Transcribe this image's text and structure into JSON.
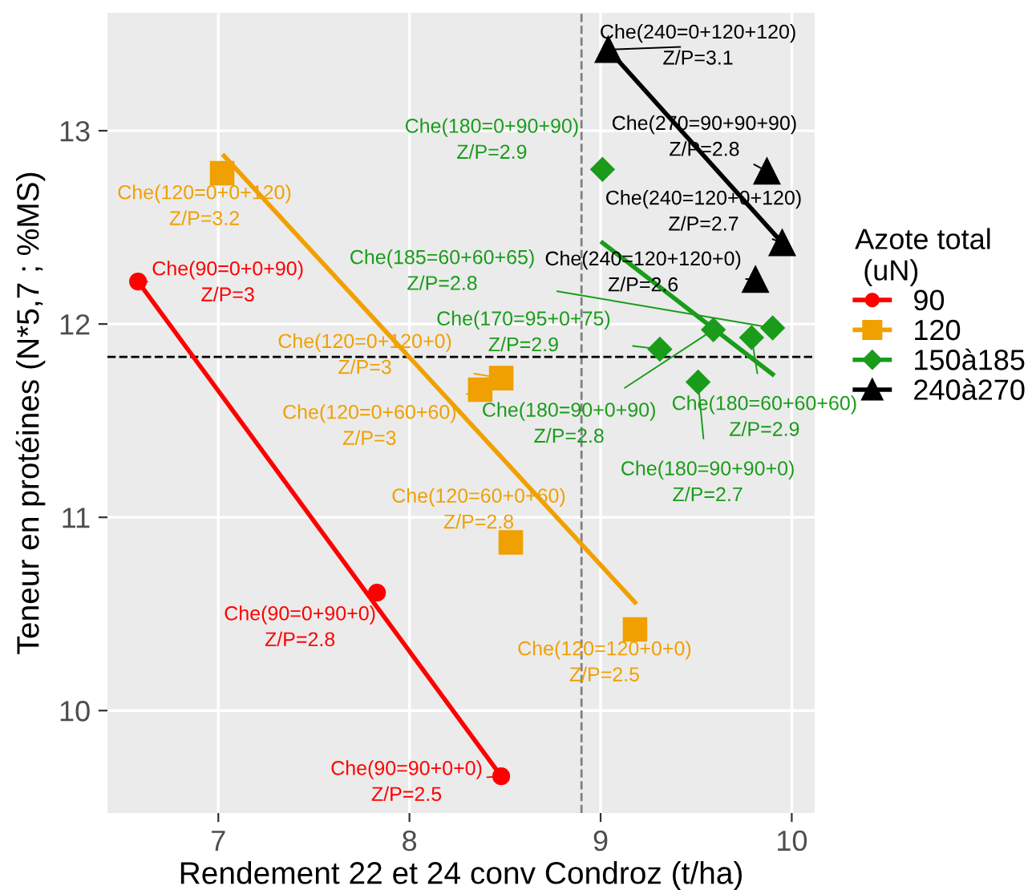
{
  "chart_data": {
    "type": "scatter",
    "xlabel": "Rendement 22 et 24 conv Condroz (t/ha)",
    "ylabel": "Teneur en protéines (N*5,7 ; %MS)",
    "legend_title": "Azote total\n (uN)",
    "xlim": [
      6.42,
      10.12
    ],
    "ylim": [
      9.47,
      13.61
    ],
    "xticks": [
      7,
      8,
      9,
      10
    ],
    "yticks": [
      10,
      11,
      12,
      13
    ],
    "grid": true,
    "legend": "right",
    "series": [
      {
        "name": "90",
        "type": "scatter",
        "marker": "circle",
        "color": "#ff0000",
        "x": [
          6.58,
          7.83,
          8.48
        ],
        "values": [
          12.22,
          10.61,
          9.66
        ]
      },
      {
        "name": "120",
        "type": "scatter",
        "marker": "square",
        "color": "#f0a000",
        "x": [
          7.02,
          8.48,
          8.37,
          8.53,
          9.18
        ],
        "values": [
          12.78,
          11.72,
          11.66,
          10.87,
          10.42
        ]
      },
      {
        "name": "150à185",
        "type": "scatter",
        "marker": "diamond",
        "color": "#1a9c1a",
        "x": [
          9.01,
          9.9,
          9.31,
          9.79,
          9.59,
          9.51
        ],
        "values": [
          12.8,
          11.98,
          11.87,
          11.93,
          11.97,
          11.7
        ]
      },
      {
        "name": "240à270",
        "type": "scatter",
        "marker": "triangle",
        "color": "#000000",
        "x": [
          9.04,
          9.87,
          9.95,
          9.81
        ],
        "values": [
          13.42,
          12.79,
          12.42,
          12.23
        ]
      },
      {
        "type": "line",
        "color": "#ff0000",
        "x": [
          6.58,
          8.48
        ],
        "values": [
          12.22,
          9.66
        ]
      },
      {
        "type": "line",
        "color": "#f0a000",
        "x": [
          7.03,
          9.18
        ],
        "values": [
          12.87,
          10.56
        ]
      },
      {
        "type": "line",
        "color": "#1a9c1a",
        "x": [
          9.01,
          9.9
        ],
        "values": [
          12.42,
          11.74
        ]
      },
      {
        "type": "line",
        "color": "#000000",
        "x": [
          9.04,
          9.95
        ],
        "values": [
          13.42,
          12.42
        ]
      }
    ],
    "ref_lines": [
      {
        "axis": "x",
        "value": 8.9,
        "color": "#808080",
        "line_style": "dashed"
      },
      {
        "axis": "y",
        "value": 11.83,
        "color": "#000000",
        "line_style": "dashed"
      }
    ],
    "annotations": [
      {
        "text": "Che(90=0+0+90)\nZ/P=3",
        "x": 6.58,
        "y": 12.22
      },
      {
        "text": "Che(90=0+90+0)\nZ/P=2.8",
        "x": 7.83,
        "y": 10.61
      },
      {
        "text": "Che(90=90+0+0)\nZ/P=2.5",
        "x": 8.48,
        "y": 9.66
      },
      {
        "text": "Che(120=0+0+120)\nZ/P=3.2",
        "x": 7.02,
        "y": 12.78
      },
      {
        "text": "Che(120=0+120+0)\nZ/P=3",
        "x": 8.48,
        "y": 11.72
      },
      {
        "text": "Che(120=0+60+60)\nZ/P=3",
        "x": 8.37,
        "y": 11.66
      },
      {
        "text": "Che(120=60+0+60)\nZ/P=2.8",
        "x": 8.53,
        "y": 10.87
      },
      {
        "text": "Che(120=120+0+0)\nZ/P=2.5",
        "x": 9.18,
        "y": 10.42
      },
      {
        "text": "Che(180=0+90+90)\nZ/P=2.9",
        "x": 9.01,
        "y": 12.8
      },
      {
        "text": "Che(185=60+60+65)\nZ/P=2.8",
        "x": 9.9,
        "y": 11.98
      },
      {
        "text": "Che(170=95+0+75)\nZ/P=2.9",
        "x": 9.31,
        "y": 11.87
      },
      {
        "text": "Che(180=60+60+60)\nZ/P=2.9",
        "x": 9.79,
        "y": 11.93
      },
      {
        "text": "Che(180=90+0+90)\nZ/P=2.8",
        "x": 9.59,
        "y": 11.97
      },
      {
        "text": "Che(180=90+90+0)\nZ/P=2.7",
        "x": 9.51,
        "y": 11.7
      },
      {
        "text": "Che(240=0+120+120)\nZ/P=3.1",
        "x": 9.04,
        "y": 13.42
      },
      {
        "text": "Che(270=90+90+90)\nZ/P=2.8",
        "x": 9.87,
        "y": 12.79
      },
      {
        "text": "Che(240=120+0+120)\nZ/P=2.7",
        "x": 9.95,
        "y": 12.42
      },
      {
        "text": "Che(240=120+120+0)\nZ/P=2.6",
        "x": 9.81,
        "y": 12.23
      }
    ]
  }
}
